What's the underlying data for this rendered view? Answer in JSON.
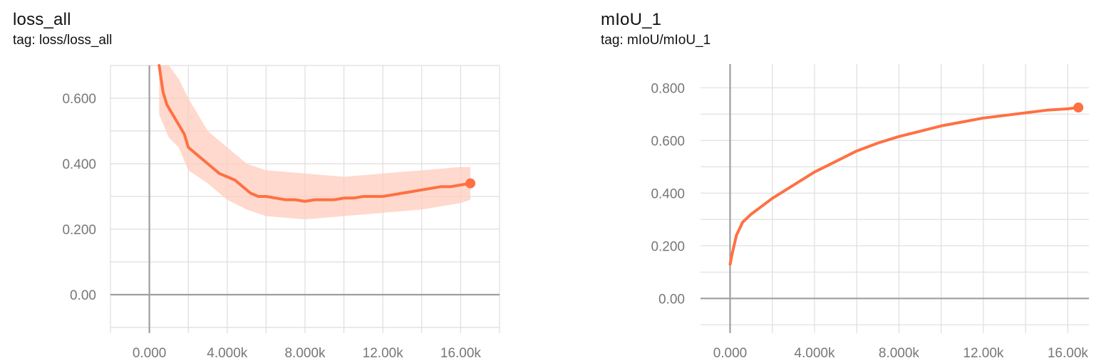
{
  "colors": {
    "line": "#ff7043",
    "raw": "#ffccbc",
    "grid": "#dedede",
    "zero_axis": "#9e9e9e",
    "tick_text": "#777777"
  },
  "chart_data": [
    {
      "type": "line",
      "title": "loss_all",
      "tag": "tag: loss/loss_all",
      "xlim": [
        -2000,
        18000
      ],
      "ylim": [
        -0.1,
        0.7
      ],
      "x_ticks": [
        0,
        4000,
        8000,
        12000,
        16000
      ],
      "x_tick_labels": [
        "0.000",
        "4.000k",
        "8.000k",
        "12.00k",
        "16.00k"
      ],
      "y_ticks": [
        0,
        0.2,
        0.4,
        0.6
      ],
      "y_tick_labels": [
        "0.00",
        "0.200",
        "0.400",
        "0.600"
      ],
      "grid": true,
      "series": [
        {
          "values_kind": "smoothed",
          "x": [
            500,
            700,
            900,
            1200,
            1500,
            1800,
            2000,
            2400,
            2800,
            3200,
            3600,
            4000,
            4400,
            4800,
            5200,
            5600,
            6000,
            6500,
            7000,
            7500,
            8000,
            8500,
            9000,
            9500,
            10000,
            10500,
            11000,
            11500,
            12000,
            12500,
            13000,
            13500,
            14000,
            14500,
            15000,
            15500,
            16000,
            16500
          ],
          "y": [
            0.7,
            0.62,
            0.58,
            0.55,
            0.52,
            0.49,
            0.45,
            0.43,
            0.41,
            0.39,
            0.37,
            0.36,
            0.35,
            0.33,
            0.31,
            0.3,
            0.3,
            0.295,
            0.29,
            0.29,
            0.285,
            0.29,
            0.29,
            0.29,
            0.295,
            0.295,
            0.3,
            0.3,
            0.3,
            0.305,
            0.31,
            0.315,
            0.32,
            0.325,
            0.33,
            0.33,
            0.335,
            0.34
          ]
        }
      ],
      "band": {
        "x": [
          500,
          1000,
          1500,
          2000,
          3000,
          4000,
          5000,
          6000,
          8000,
          10000,
          12000,
          14000,
          16000,
          16500
        ],
        "upper": [
          0.7,
          0.7,
          0.66,
          0.6,
          0.5,
          0.45,
          0.4,
          0.38,
          0.37,
          0.36,
          0.37,
          0.38,
          0.39,
          0.39
        ],
        "lower": [
          0.55,
          0.48,
          0.45,
          0.38,
          0.34,
          0.29,
          0.26,
          0.24,
          0.23,
          0.24,
          0.25,
          0.26,
          0.28,
          0.29
        ]
      }
    },
    {
      "type": "line",
      "title": "mIoU_1",
      "tag": "tag: mIoU/mIoU_1",
      "xlim": [
        -1400,
        17000
      ],
      "ylim": [
        -0.11,
        0.89
      ],
      "x_ticks": [
        0,
        4000,
        8000,
        12000,
        16000
      ],
      "x_tick_labels": [
        "0.000",
        "4.000k",
        "8.000k",
        "12.00k",
        "16.00k"
      ],
      "y_ticks": [
        0,
        0.2,
        0.4,
        0.6,
        0.8
      ],
      "y_tick_labels": [
        "0.00",
        "0.200",
        "0.400",
        "0.600",
        "0.800"
      ],
      "grid": true,
      "series": [
        {
          "values_kind": "smoothed",
          "x": [
            0,
            100,
            300,
            600,
            1000,
            1500,
            2000,
            3000,
            4000,
            5000,
            6000,
            7000,
            8000,
            9000,
            10000,
            11000,
            12000,
            13000,
            14000,
            15000,
            16000,
            16500
          ],
          "y": [
            0.13,
            0.17,
            0.24,
            0.29,
            0.32,
            0.35,
            0.38,
            0.43,
            0.48,
            0.52,
            0.56,
            0.59,
            0.615,
            0.635,
            0.655,
            0.67,
            0.685,
            0.695,
            0.705,
            0.715,
            0.72,
            0.725
          ]
        }
      ]
    }
  ]
}
